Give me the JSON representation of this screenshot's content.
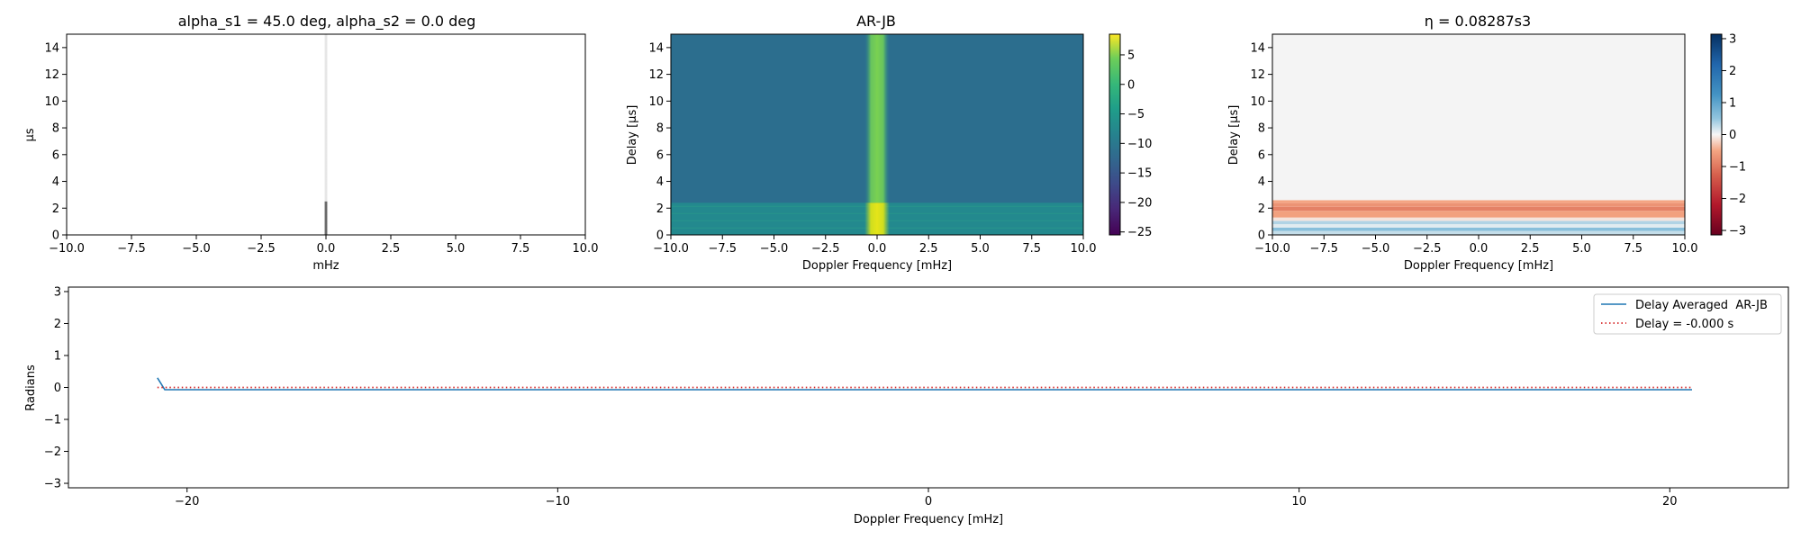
{
  "chart_data": [
    {
      "type": "heatmap",
      "title": "alpha_s1 = 45.0 deg, alpha_s2 = 0.0 deg",
      "xlabel": "mHz",
      "ylabel": "µs",
      "xlim": [
        -10,
        10
      ],
      "ylim": [
        0,
        15
      ],
      "xticks": [
        -10,
        -7.5,
        -5,
        -2.5,
        0,
        2.5,
        5,
        7.5,
        10
      ],
      "xtick_labels": [
        "−10.0",
        "−7.5",
        "−5.0",
        "−2.5",
        "0.0",
        "2.5",
        "5.0",
        "7.5",
        "10.0"
      ],
      "yticks": [
        0,
        2,
        4,
        6,
        8,
        10,
        12,
        14
      ],
      "ytick_labels": [
        "0",
        "2",
        "4",
        "6",
        "8",
        "10",
        "12",
        "14"
      ],
      "colormap": "gray_r",
      "description_values": {
        "column_center_mhz": 0.0,
        "column_halfwidth_mhz": 0.08,
        "background_intensity": 0.0,
        "column_intensity_high_delay": 0.12,
        "column_intensity_low_delay": 0.75,
        "low_delay_cutoff_us": 2.5
      }
    },
    {
      "type": "heatmap",
      "title": "AR-JB",
      "xlabel": "Doppler Frequency [mHz]",
      "ylabel": "Delay [µs]",
      "xlim": [
        -10,
        10
      ],
      "ylim": [
        0,
        15
      ],
      "xticks": [
        -10,
        -7.5,
        -5,
        -2.5,
        0,
        2.5,
        5,
        7.5,
        10
      ],
      "xtick_labels": [
        "−10.0",
        "−7.5",
        "−5.0",
        "−2.5",
        "0.0",
        "2.5",
        "5.0",
        "7.5",
        "10.0"
      ],
      "yticks": [
        0,
        2,
        4,
        6,
        8,
        10,
        12,
        14
      ],
      "ytick_labels": [
        "0",
        "2",
        "4",
        "6",
        "8",
        "10",
        "12",
        "14"
      ],
      "colormap": "viridis",
      "colorbar": {
        "range": [
          -25.5,
          8.5
        ],
        "ticks": [
          -25,
          -20,
          -15,
          -10,
          -5,
          0,
          5
        ],
        "tick_labels": [
          "−25",
          "−20",
          "−15",
          "−10",
          "−5",
          "0",
          "5"
        ]
      },
      "description_values": {
        "background_level": -12.5,
        "low_delay_band_level": -10.0,
        "low_delay_cutoff_us": 2.4,
        "column_center_mhz": 0.0,
        "column_halfwidth_mhz": 0.6,
        "column_level_high_delay": 0.0,
        "column_level_low_delay": 6.0
      }
    },
    {
      "type": "heatmap",
      "title": "η = 0.08287s3",
      "xlabel": "Doppler Frequency [mHz]",
      "ylabel": "Delay [µs]",
      "xlim": [
        -10,
        10
      ],
      "ylim": [
        0,
        15
      ],
      "xticks": [
        -10,
        -7.5,
        -5,
        -2.5,
        0,
        2.5,
        5,
        7.5,
        10
      ],
      "xtick_labels": [
        "−10.0",
        "−7.5",
        "−5.0",
        "−2.5",
        "0.0",
        "2.5",
        "5.0",
        "7.5",
        "10.0"
      ],
      "yticks": [
        0,
        2,
        4,
        6,
        8,
        10,
        12,
        14
      ],
      "ytick_labels": [
        "0",
        "2",
        "4",
        "6",
        "8",
        "10",
        "12",
        "14"
      ],
      "colormap": "RdBu",
      "colorbar": {
        "range": [
          -3.14,
          3.14
        ],
        "ticks": [
          -3,
          -2,
          -1,
          0,
          1,
          2,
          3
        ],
        "tick_labels": [
          "−3",
          "−2",
          "−1",
          "0",
          "1",
          "2",
          "3"
        ]
      },
      "rows": [
        {
          "y0": 0.0,
          "y1": 0.3,
          "value": 0.25
        },
        {
          "y0": 0.3,
          "y1": 0.55,
          "value": 0.6
        },
        {
          "y0": 0.55,
          "y1": 0.8,
          "value": 0.1
        },
        {
          "y0": 0.8,
          "y1": 1.05,
          "value": 0.35
        },
        {
          "y0": 1.05,
          "y1": 1.3,
          "value": -0.1
        },
        {
          "y0": 1.3,
          "y1": 1.8,
          "value": -0.55
        },
        {
          "y0": 1.8,
          "y1": 2.1,
          "value": -0.9
        },
        {
          "y0": 2.1,
          "y1": 2.4,
          "value": -0.7
        },
        {
          "y0": 2.4,
          "y1": 2.6,
          "value": -0.5
        },
        {
          "y0": 2.6,
          "y1": 15.0,
          "value": 0.0
        }
      ]
    },
    {
      "type": "line",
      "title": "",
      "xlabel": "Doppler Frequency [mHz]",
      "ylabel": "Radians",
      "xlim": [
        -23.2,
        23.2
      ],
      "ylim": [
        -3.14,
        3.14
      ],
      "xticks": [
        -20,
        -10,
        0,
        10,
        20
      ],
      "xtick_labels": [
        "−20",
        "−10",
        "0",
        "10",
        "20"
      ],
      "yticks": [
        -3,
        -2,
        -1,
        0,
        1,
        2,
        3
      ],
      "ytick_labels": [
        "−3",
        "−2",
        "−1",
        "0",
        "1",
        "2",
        "3"
      ],
      "legend_position": "top-right",
      "series": [
        {
          "name": "Delay Averaged  AR-JB",
          "color": "#1f77b4",
          "style": "solid",
          "x": [
            -20.8,
            -20.6,
            -10,
            0,
            10,
            20.6
          ],
          "y": [
            0.3,
            -0.07,
            -0.07,
            -0.07,
            -0.07,
            -0.07
          ]
        },
        {
          "name": "Delay = -0.000 s",
          "color": "#d62728",
          "style": "dotted",
          "x": [
            -20.8,
            20.6
          ],
          "y": [
            0.0,
            0.0
          ]
        }
      ]
    }
  ]
}
